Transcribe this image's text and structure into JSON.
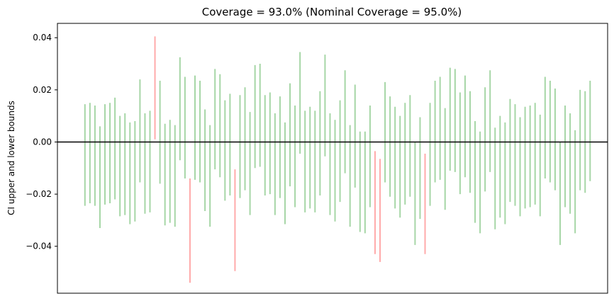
{
  "chart_data": {
    "type": "errorbar",
    "title": "Coverage = 93.0% (Nominal Coverage = 95.0%)",
    "xlabel": "",
    "ylabel": "CI upper and lower bounds",
    "ylim": [
      -0.058,
      0.0455
    ],
    "xlim": [
      -5.5,
      104.5
    ],
    "yticks": [
      0.04,
      0.02,
      0.0,
      -0.02,
      -0.04
    ],
    "ytick_labels": [
      "0.04",
      "0.02",
      "0.00",
      "−0.02",
      "−0.04"
    ],
    "reference_line": 0.0,
    "grid": false,
    "covered_color": "#a6d6a6",
    "missed_color": "#ffaaaa",
    "reference_color": "#000000",
    "intervals": [
      {
        "lower": -0.0245,
        "upper": 0.0145
      },
      {
        "lower": -0.0235,
        "upper": 0.015
      },
      {
        "lower": -0.0245,
        "upper": 0.014
      },
      {
        "lower": -0.033,
        "upper": 0.006
      },
      {
        "lower": -0.024,
        "upper": 0.0145
      },
      {
        "lower": -0.0235,
        "upper": 0.015
      },
      {
        "lower": -0.022,
        "upper": 0.017
      },
      {
        "lower": -0.0285,
        "upper": 0.01
      },
      {
        "lower": -0.028,
        "upper": 0.011
      },
      {
        "lower": -0.0315,
        "upper": 0.0075
      },
      {
        "lower": -0.0305,
        "upper": 0.008
      },
      {
        "lower": -0.0155,
        "upper": 0.024
      },
      {
        "lower": -0.0275,
        "upper": 0.011
      },
      {
        "lower": -0.027,
        "upper": 0.012
      },
      {
        "lower": 0.001,
        "upper": 0.0405
      },
      {
        "lower": -0.016,
        "upper": 0.0235
      },
      {
        "lower": -0.032,
        "upper": 0.007
      },
      {
        "lower": -0.031,
        "upper": 0.0085
      },
      {
        "lower": -0.0325,
        "upper": 0.0065
      },
      {
        "lower": -0.007,
        "upper": 0.0325
      },
      {
        "lower": -0.014,
        "upper": 0.025
      },
      {
        "lower": -0.054,
        "upper": -0.014
      },
      {
        "lower": -0.0145,
        "upper": 0.0255
      },
      {
        "lower": -0.0155,
        "upper": 0.0235
      },
      {
        "lower": -0.0265,
        "upper": 0.0125
      },
      {
        "lower": -0.0325,
        "upper": 0.0065
      },
      {
        "lower": -0.0105,
        "upper": 0.028
      },
      {
        "lower": -0.0135,
        "upper": 0.026
      },
      {
        "lower": -0.0225,
        "upper": 0.016
      },
      {
        "lower": -0.0205,
        "upper": 0.0185
      },
      {
        "lower": -0.0495,
        "upper": -0.0105
      },
      {
        "lower": -0.0215,
        "upper": 0.018
      },
      {
        "lower": -0.0185,
        "upper": 0.021
      },
      {
        "lower": -0.028,
        "upper": 0.0115
      },
      {
        "lower": -0.01,
        "upper": 0.0295
      },
      {
        "lower": -0.0095,
        "upper": 0.03
      },
      {
        "lower": -0.0205,
        "upper": 0.018
      },
      {
        "lower": -0.02,
        "upper": 0.019
      },
      {
        "lower": -0.028,
        "upper": 0.011
      },
      {
        "lower": -0.0215,
        "upper": 0.0175
      },
      {
        "lower": -0.0315,
        "upper": 0.0075
      },
      {
        "lower": -0.017,
        "upper": 0.0225
      },
      {
        "lower": -0.025,
        "upper": 0.014
      },
      {
        "lower": -0.0045,
        "upper": 0.0345
      },
      {
        "lower": -0.027,
        "upper": 0.012
      },
      {
        "lower": -0.0255,
        "upper": 0.0135
      },
      {
        "lower": -0.027,
        "upper": 0.012
      },
      {
        "lower": -0.0205,
        "upper": 0.0195
      },
      {
        "lower": -0.0055,
        "upper": 0.0335
      },
      {
        "lower": -0.028,
        "upper": 0.011
      },
      {
        "lower": -0.0305,
        "upper": 0.0085
      },
      {
        "lower": -0.023,
        "upper": 0.016
      },
      {
        "lower": -0.012,
        "upper": 0.0275
      },
      {
        "lower": -0.0325,
        "upper": 0.0065
      },
      {
        "lower": -0.0175,
        "upper": 0.022
      },
      {
        "lower": -0.0345,
        "upper": 0.004
      },
      {
        "lower": -0.035,
        "upper": 0.004
      },
      {
        "lower": -0.025,
        "upper": 0.014
      },
      {
        "lower": -0.043,
        "upper": -0.0035
      },
      {
        "lower": -0.046,
        "upper": -0.0065
      },
      {
        "lower": -0.0155,
        "upper": 0.023
      },
      {
        "lower": -0.021,
        "upper": 0.0175
      },
      {
        "lower": -0.0255,
        "upper": 0.0135
      },
      {
        "lower": -0.029,
        "upper": 0.01
      },
      {
        "lower": -0.024,
        "upper": 0.015
      },
      {
        "lower": -0.021,
        "upper": 0.018
      },
      {
        "lower": -0.0395,
        "upper": 0.0
      },
      {
        "lower": -0.0295,
        "upper": 0.0095
      },
      {
        "lower": -0.043,
        "upper": -0.0045
      },
      {
        "lower": -0.0245,
        "upper": 0.015
      },
      {
        "lower": -0.0155,
        "upper": 0.0235
      },
      {
        "lower": -0.0145,
        "upper": 0.025
      },
      {
        "lower": -0.026,
        "upper": 0.013
      },
      {
        "lower": -0.011,
        "upper": 0.0285
      },
      {
        "lower": -0.0115,
        "upper": 0.028
      },
      {
        "lower": -0.02,
        "upper": 0.019
      },
      {
        "lower": -0.0135,
        "upper": 0.0255
      },
      {
        "lower": -0.0195,
        "upper": 0.0195
      },
      {
        "lower": -0.031,
        "upper": 0.008
      },
      {
        "lower": -0.035,
        "upper": 0.004
      },
      {
        "lower": -0.019,
        "upper": 0.021
      },
      {
        "lower": -0.0115,
        "upper": 0.0275
      },
      {
        "lower": -0.0335,
        "upper": 0.0055
      },
      {
        "lower": -0.029,
        "upper": 0.01
      },
      {
        "lower": -0.0315,
        "upper": 0.0075
      },
      {
        "lower": -0.023,
        "upper": 0.0165
      },
      {
        "lower": -0.0245,
        "upper": 0.0145
      },
      {
        "lower": -0.0285,
        "upper": 0.0095
      },
      {
        "lower": -0.0255,
        "upper": 0.0135
      },
      {
        "lower": -0.025,
        "upper": 0.014
      },
      {
        "lower": -0.024,
        "upper": 0.015
      },
      {
        "lower": -0.0285,
        "upper": 0.0105
      },
      {
        "lower": -0.014,
        "upper": 0.025
      },
      {
        "lower": -0.0155,
        "upper": 0.0235
      },
      {
        "lower": -0.0185,
        "upper": 0.0205
      },
      {
        "lower": -0.0395,
        "upper": 0.0
      },
      {
        "lower": -0.025,
        "upper": 0.014
      },
      {
        "lower": -0.0275,
        "upper": 0.011
      },
      {
        "lower": -0.035,
        "upper": 0.0045
      },
      {
        "lower": -0.0185,
        "upper": 0.02
      },
      {
        "lower": -0.0195,
        "upper": 0.0195
      },
      {
        "lower": -0.015,
        "upper": 0.0235
      }
    ]
  }
}
